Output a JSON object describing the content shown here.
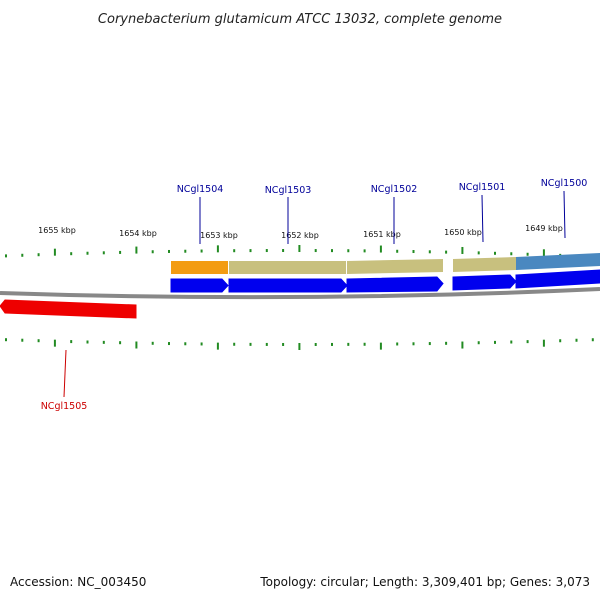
{
  "title": "Corynebacterium glutamicum ATCC 13032, complete genome",
  "footer": {
    "accession": "Accession: NC_003450",
    "summary": "Topology: circular; Length: 3,309,401 bp; Genes: 3,073"
  },
  "scale": {
    "tick_labels": [
      "1655 kbp",
      "1654 kbp",
      "1653 kbp",
      "1652 kbp",
      "1651 kbp",
      "1650 kbp",
      "1649 kbp"
    ]
  },
  "genes": [
    {
      "name": "NCgl1504",
      "strand": "+",
      "label_color": "#000099",
      "body_color": "#0000ee",
      "feature_color": "#f39c12"
    },
    {
      "name": "NCgl1503",
      "strand": "+",
      "label_color": "#000099",
      "body_color": "#0000ee",
      "feature_color": "#c8c07e"
    },
    {
      "name": "NCgl1502",
      "strand": "+",
      "label_color": "#000099",
      "body_color": "#0000ee",
      "feature_color": "#c8c07e"
    },
    {
      "name": "NCgl1501",
      "strand": "+",
      "label_color": "#000099",
      "body_color": "#0000ee",
      "feature_color": "#c8c07e"
    },
    {
      "name": "NCgl1500",
      "strand": "+",
      "label_color": "#000099",
      "body_color": "#0000ee",
      "feature_color": "#4a88c0"
    },
    {
      "name": "NCgl1505",
      "strand": "-",
      "label_color": "#cc0000",
      "body_color": "#ee0000",
      "feature_color": ""
    }
  ],
  "colors": {
    "tick": "#228b22",
    "backbone": "#888888"
  }
}
